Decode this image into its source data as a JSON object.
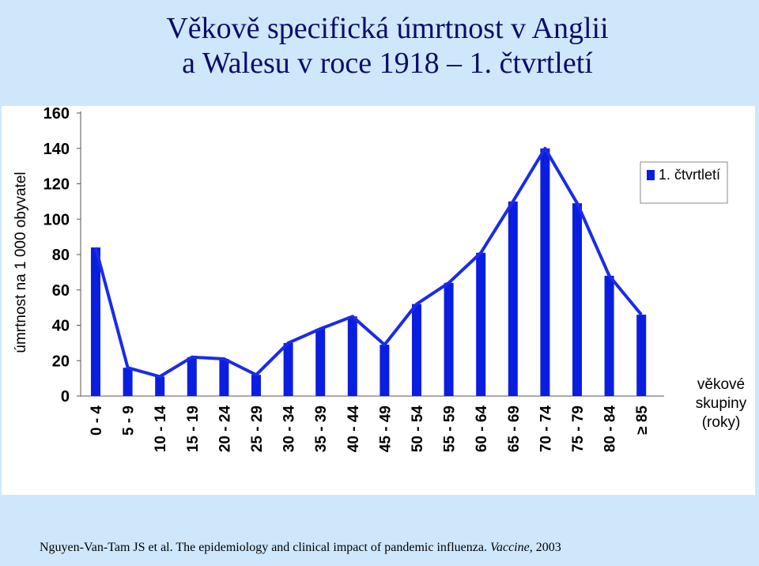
{
  "title_line1": "Věkově specifická úmrtnost v Anglii",
  "title_line2": "a Walesu v roce 1918 – 1. čtvrtletí",
  "footer": {
    "citation": "Nguyen-Van-Tam JS et al. The epidemiology and clinical impact of pandemic influenza.",
    "journal": "Vaccine",
    "year": ", 2003"
  },
  "chart_data": {
    "type": "bar",
    "ylabel": "úmrtnost na 1 000 obyvatel",
    "xlabel_lines": [
      "věkové",
      "skupiny",
      "(roky)"
    ],
    "ylim": [
      0,
      160
    ],
    "yticks": [
      0,
      20,
      40,
      60,
      80,
      100,
      120,
      140,
      160
    ],
    "categories": [
      "0 - 4",
      "5 - 9",
      "10 - 14",
      "15 - 19",
      "20 - 24",
      "25 - 29",
      "30 - 34",
      "35 - 39",
      "40 - 44",
      "45 - 49",
      "50 - 54",
      "55 - 59",
      "60 - 64",
      "65 - 69",
      "70 - 74",
      "75 - 79",
      "80 - 84",
      "≥ 85"
    ],
    "series": [
      {
        "name": "1. čtvrtletí",
        "values": [
          84,
          16,
          11,
          22,
          21,
          12,
          30,
          38,
          45,
          29,
          52,
          64,
          81,
          110,
          140,
          109,
          68,
          46
        ]
      }
    ],
    "legend_position": "top-right",
    "grid": false,
    "bar_color": "#0a1ee0",
    "line_color": "#1a2be8"
  }
}
